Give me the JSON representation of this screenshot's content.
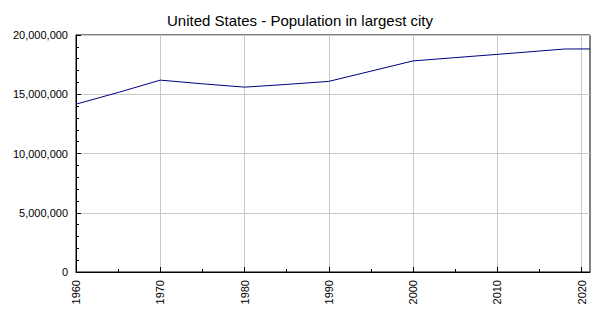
{
  "chart_data": {
    "type": "line",
    "title": "United States - Population in largest city",
    "x": [
      1960,
      1965,
      1970,
      1975,
      1980,
      1985,
      1990,
      1995,
      2000,
      2005,
      2010,
      2015,
      2018,
      2021
    ],
    "values": [
      14164000,
      15150000,
      16191000,
      15880000,
      15601000,
      15830000,
      16086000,
      16950000,
      17813000,
      18090000,
      18365000,
      18648000,
      18819000,
      18823000
    ],
    "color": "#000080",
    "xlim": [
      1960,
      2021
    ],
    "xticks": [
      1960,
      1970,
      1980,
      1990,
      2000,
      2010,
      2020
    ],
    "ylim": [
      0,
      20000000
    ],
    "yticks": [
      0,
      {
        "value": 5000000,
        "label": "5,000,000"
      },
      {
        "value": 10000000,
        "label": "10,000,000"
      },
      {
        "value": 15000000,
        "label": "15,000,000"
      },
      {
        "value": 20000000,
        "label": "20,000,000"
      }
    ],
    "grid": true
  }
}
